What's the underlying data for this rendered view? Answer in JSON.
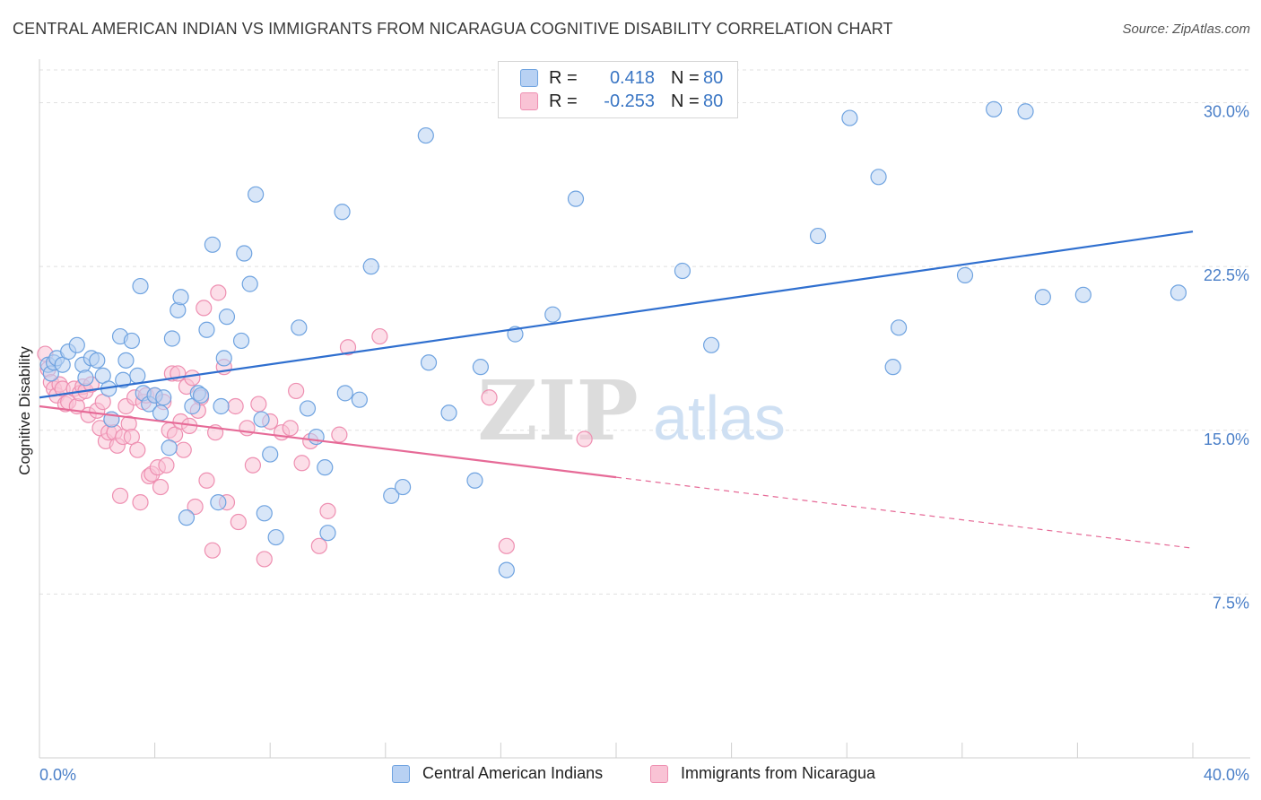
{
  "header": {
    "title": "CENTRAL AMERICAN INDIAN VS IMMIGRANTS FROM NICARAGUA COGNITIVE DISABILITY CORRELATION CHART",
    "source": "Source: ZipAtlas.com"
  },
  "watermark": {
    "zip": "ZIP",
    "atlas": "atlas"
  },
  "legend": {
    "rows": [
      {
        "r_label": "R =",
        "r_value": "0.418",
        "n_label": "N =",
        "n_value": "80",
        "color": "#6fa3e0"
      },
      {
        "r_label": "R =",
        "r_value": "-0.253",
        "n_label": "N =",
        "n_value": "80",
        "color": "#f19ab8"
      }
    ]
  },
  "colors": {
    "blue_fill": "#b8d1f3",
    "blue_stroke": "#6fa3e0",
    "blue_line": "#2f6fcf",
    "pink_fill": "#f9c3d5",
    "pink_stroke": "#ee8fb1",
    "pink_line": "#e66a97",
    "axis_text": "#4a7fc8",
    "grid": "#e0e0e0"
  },
  "chart_data": {
    "type": "scatter",
    "title": "CENTRAL AMERICAN INDIAN VS IMMIGRANTS FROM NICARAGUA COGNITIVE DISABILITY CORRELATION CHART",
    "xlabel": "",
    "ylabel": "Cognitive Disability",
    "xlim": [
      0,
      40
    ],
    "ylim": [
      0,
      31.5
    ],
    "x_tick_labels": [
      "0.0%",
      "40.0%"
    ],
    "y_ticks": [
      7.5,
      15.0,
      22.5,
      30.0
    ],
    "y_tick_labels": [
      "7.5%",
      "15.0%",
      "22.5%",
      "30.0%"
    ],
    "grid": true,
    "legend_position": "top-center",
    "series": [
      {
        "name": "Central American Indians",
        "color": "#6fa3e0",
        "trend": {
          "x": [
            0,
            40
          ],
          "y": [
            16.5,
            24.1
          ],
          "dashed_from": null
        },
        "points": [
          [
            0.3,
            18.0
          ],
          [
            0.4,
            17.6
          ],
          [
            0.5,
            18.1
          ],
          [
            0.6,
            18.3
          ],
          [
            0.8,
            18.0
          ],
          [
            1.0,
            18.6
          ],
          [
            1.3,
            18.9
          ],
          [
            1.5,
            18.0
          ],
          [
            1.6,
            17.4
          ],
          [
            1.8,
            18.3
          ],
          [
            2.0,
            18.2
          ],
          [
            2.2,
            17.5
          ],
          [
            2.4,
            16.9
          ],
          [
            2.5,
            15.5
          ],
          [
            2.8,
            19.3
          ],
          [
            2.9,
            17.3
          ],
          [
            3.0,
            18.2
          ],
          [
            3.2,
            19.1
          ],
          [
            3.4,
            17.5
          ],
          [
            3.5,
            21.6
          ],
          [
            3.6,
            16.7
          ],
          [
            3.8,
            16.2
          ],
          [
            4.0,
            16.6
          ],
          [
            4.2,
            15.8
          ],
          [
            4.3,
            16.5
          ],
          [
            4.5,
            14.2
          ],
          [
            4.6,
            19.2
          ],
          [
            4.8,
            20.5
          ],
          [
            4.9,
            21.1
          ],
          [
            5.1,
            11.0
          ],
          [
            5.3,
            16.1
          ],
          [
            5.5,
            16.7
          ],
          [
            5.6,
            16.6
          ],
          [
            5.8,
            19.6
          ],
          [
            6.0,
            23.5
          ],
          [
            6.2,
            11.7
          ],
          [
            6.3,
            16.1
          ],
          [
            6.4,
            18.3
          ],
          [
            6.5,
            20.2
          ],
          [
            7.0,
            19.1
          ],
          [
            7.1,
            23.1
          ],
          [
            7.3,
            21.7
          ],
          [
            7.5,
            25.8
          ],
          [
            7.7,
            15.5
          ],
          [
            7.8,
            11.2
          ],
          [
            8.0,
            13.9
          ],
          [
            8.2,
            10.1
          ],
          [
            9.0,
            19.7
          ],
          [
            9.3,
            16.0
          ],
          [
            9.6,
            14.7
          ],
          [
            9.9,
            13.3
          ],
          [
            10.0,
            10.3
          ],
          [
            10.5,
            25.0
          ],
          [
            10.6,
            16.7
          ],
          [
            11.1,
            16.4
          ],
          [
            11.5,
            22.5
          ],
          [
            12.2,
            12.0
          ],
          [
            12.6,
            12.4
          ],
          [
            13.4,
            28.5
          ],
          [
            13.5,
            18.1
          ],
          [
            14.2,
            15.8
          ],
          [
            15.1,
            12.7
          ],
          [
            15.3,
            17.9
          ],
          [
            16.2,
            8.6
          ],
          [
            16.5,
            19.4
          ],
          [
            17.8,
            20.3
          ],
          [
            18.6,
            25.6
          ],
          [
            22.3,
            22.3
          ],
          [
            23.3,
            18.9
          ],
          [
            27.0,
            23.9
          ],
          [
            28.1,
            29.3
          ],
          [
            29.1,
            26.6
          ],
          [
            29.6,
            17.9
          ],
          [
            29.8,
            19.7
          ],
          [
            32.1,
            22.1
          ],
          [
            33.1,
            29.7
          ],
          [
            34.2,
            29.6
          ],
          [
            34.8,
            21.1
          ],
          [
            36.2,
            21.2
          ],
          [
            39.5,
            21.3
          ]
        ]
      },
      {
        "name": "Immigrants from Nicaragua",
        "color": "#f19ab8",
        "trend": {
          "x": [
            0,
            40
          ],
          "y": [
            16.1,
            9.6
          ],
          "dashed_from": 20
        },
        "points": [
          [
            0.3,
            17.8
          ],
          [
            0.4,
            17.2
          ],
          [
            0.5,
            16.9
          ],
          [
            0.6,
            16.6
          ],
          [
            0.7,
            17.1
          ],
          [
            0.8,
            16.9
          ],
          [
            0.9,
            16.2
          ],
          [
            1.0,
            16.3
          ],
          [
            1.2,
            16.9
          ],
          [
            1.3,
            16.1
          ],
          [
            1.4,
            16.7
          ],
          [
            1.5,
            17.0
          ],
          [
            1.6,
            16.8
          ],
          [
            1.7,
            15.7
          ],
          [
            1.8,
            17.1
          ],
          [
            2.0,
            15.9
          ],
          [
            2.1,
            15.1
          ],
          [
            2.2,
            16.3
          ],
          [
            2.3,
            14.5
          ],
          [
            2.4,
            14.9
          ],
          [
            2.5,
            15.5
          ],
          [
            2.6,
            14.9
          ],
          [
            2.7,
            14.3
          ],
          [
            2.8,
            12.0
          ],
          [
            2.9,
            14.7
          ],
          [
            3.0,
            16.1
          ],
          [
            3.1,
            15.3
          ],
          [
            3.2,
            14.7
          ],
          [
            3.3,
            16.5
          ],
          [
            3.4,
            14.1
          ],
          [
            3.5,
            11.7
          ],
          [
            3.6,
            16.3
          ],
          [
            3.7,
            16.6
          ],
          [
            3.8,
            12.9
          ],
          [
            3.9,
            13.0
          ],
          [
            4.0,
            16.6
          ],
          [
            4.1,
            13.3
          ],
          [
            4.2,
            12.4
          ],
          [
            4.3,
            16.3
          ],
          [
            4.4,
            13.4
          ],
          [
            4.5,
            15.0
          ],
          [
            4.6,
            17.6
          ],
          [
            4.7,
            14.8
          ],
          [
            4.8,
            17.6
          ],
          [
            4.9,
            15.4
          ],
          [
            5.0,
            14.1
          ],
          [
            5.1,
            17.0
          ],
          [
            5.2,
            15.2
          ],
          [
            5.3,
            17.4
          ],
          [
            5.4,
            11.5
          ],
          [
            5.5,
            15.9
          ],
          [
            5.6,
            16.5
          ],
          [
            5.7,
            20.6
          ],
          [
            5.8,
            12.7
          ],
          [
            6.0,
            9.5
          ],
          [
            6.1,
            14.9
          ],
          [
            6.2,
            21.3
          ],
          [
            6.4,
            17.9
          ],
          [
            6.5,
            11.7
          ],
          [
            6.8,
            16.1
          ],
          [
            6.9,
            10.8
          ],
          [
            7.2,
            15.1
          ],
          [
            7.4,
            13.4
          ],
          [
            7.6,
            16.2
          ],
          [
            7.8,
            9.1
          ],
          [
            8.0,
            15.4
          ],
          [
            8.4,
            14.9
          ],
          [
            8.7,
            15.1
          ],
          [
            8.9,
            16.8
          ],
          [
            9.1,
            13.5
          ],
          [
            9.4,
            14.5
          ],
          [
            9.7,
            9.7
          ],
          [
            10.0,
            11.3
          ],
          [
            10.4,
            14.8
          ],
          [
            10.7,
            18.8
          ],
          [
            11.8,
            19.3
          ],
          [
            15.6,
            16.5
          ],
          [
            16.2,
            9.7
          ],
          [
            18.9,
            14.6
          ],
          [
            0.2,
            18.5
          ]
        ]
      }
    ],
    "x_axis_labels": {
      "left": "0.0%",
      "right": "40.0%"
    }
  }
}
